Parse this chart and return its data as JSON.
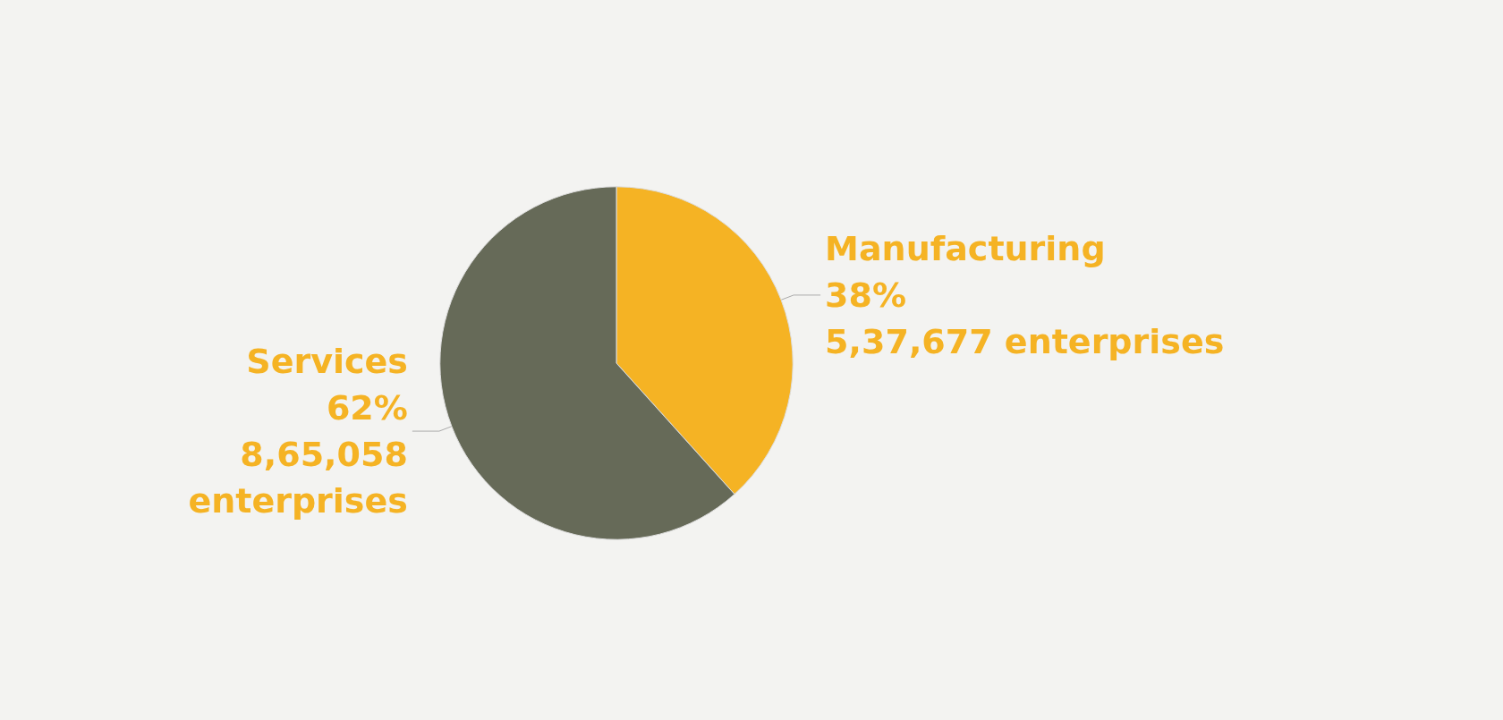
{
  "chart_data": {
    "type": "pie",
    "categories": [
      "Manufacturing",
      "Services"
    ],
    "values": [
      537677,
      865058
    ],
    "colors": [
      "#f5b324",
      "#666a58"
    ],
    "value_labels": [
      "38%\n5,37,677 enterprises",
      "62%\n8,65,058\nenterprises"
    ],
    "legend": false
  }
}
